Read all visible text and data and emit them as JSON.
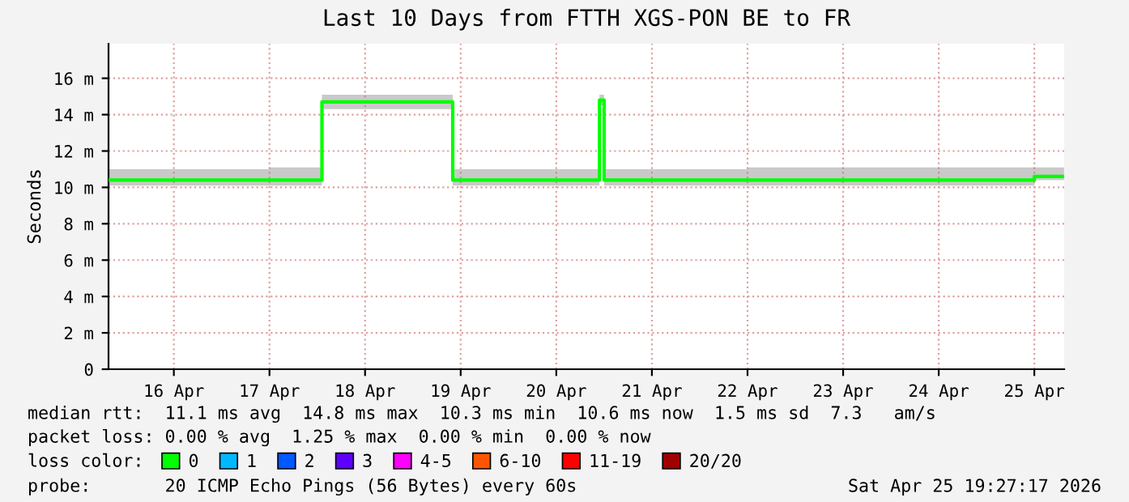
{
  "chart_data": {
    "type": "step",
    "title": "Last 10 Days from FTTH XGS-PON BE to FR",
    "ylabel": "Seconds",
    "x": [
      "2026-04-15T19:36",
      "2026-04-16T06:00",
      "2026-04-17T12:00",
      "2026-04-18T01:10",
      "2026-04-18T12:00",
      "2026-04-19T10:00",
      "2026-04-20T12:00",
      "2026-04-20T22:50",
      "2026-04-21T00:00",
      "2026-04-22T12:00",
      "2026-04-24T00:00",
      "2026-04-25T12:00",
      "2026-04-25T19:27"
    ],
    "series": [
      {
        "name": "0",
        "color": "#00ff00",
        "values": [
          10.4,
          10.4,
          10.4,
          14.7,
          14.7,
          10.4,
          10.4,
          14.8,
          10.4,
          10.4,
          10.4,
          10.6,
          10.6
        ],
        "lower": [
          10.1,
          10.1,
          10.1,
          14.3,
          14.3,
          10.1,
          10.1,
          14.5,
          10.1,
          10.1,
          10.1,
          10.4,
          10.4
        ],
        "upper": [
          11.0,
          11.0,
          11.1,
          15.1,
          15.1,
          11.0,
          11.0,
          15.1,
          11.0,
          11.1,
          11.1,
          11.1,
          11.1
        ]
      },
      {
        "name": "1",
        "color": "#00b8ff",
        "values": [
          null,
          null,
          null,
          null,
          null,
          null,
          null,
          null,
          null,
          null,
          null,
          null,
          null
        ]
      },
      {
        "name": "2",
        "color": "#0059ff",
        "values": [
          null,
          null,
          null,
          null,
          null,
          null,
          null,
          null,
          null,
          null,
          null,
          null,
          null
        ]
      },
      {
        "name": "3",
        "color": "#5e00ff",
        "values": [
          null,
          null,
          null,
          null,
          null,
          null,
          null,
          null,
          null,
          null,
          null,
          null,
          null
        ]
      },
      {
        "name": "4-5",
        "color": "#ff00ff",
        "values": [
          null,
          null,
          null,
          null,
          null,
          null,
          null,
          null,
          null,
          null,
          null,
          null,
          null
        ]
      },
      {
        "name": "6-10",
        "color": "#ff5500",
        "values": [
          null,
          null,
          null,
          null,
          null,
          null,
          null,
          null,
          null,
          null,
          null,
          null,
          null
        ]
      },
      {
        "name": "11-19",
        "color": "#ff0000",
        "values": [
          null,
          null,
          null,
          null,
          null,
          null,
          null,
          null,
          null,
          null,
          null,
          null,
          null
        ]
      },
      {
        "name": "20/20",
        "color": "#a10000",
        "values": [
          null,
          null,
          null,
          null,
          null,
          null,
          null,
          null,
          null,
          null,
          null,
          null,
          null
        ]
      }
    ],
    "legend_title": "loss color:",
    "legend": "bottom",
    "xlim": [
      "2026-04-15T19:36",
      "2026-04-25T19:30"
    ],
    "xticks": [
      {
        "value": "2026-04-16T12:00",
        "label": "16 Apr"
      },
      {
        "value": "2026-04-17T12:00",
        "label": "17 Apr"
      },
      {
        "value": "2026-04-18T12:00",
        "label": "18 Apr"
      },
      {
        "value": "2026-04-19T12:00",
        "label": "19 Apr"
      },
      {
        "value": "2026-04-20T12:00",
        "label": "20 Apr"
      },
      {
        "value": "2026-04-21T12:00",
        "label": "21 Apr"
      },
      {
        "value": "2026-04-22T12:00",
        "label": "22 Apr"
      },
      {
        "value": "2026-04-23T12:00",
        "label": "23 Apr"
      },
      {
        "value": "2026-04-24T12:00",
        "label": "24 Apr"
      },
      {
        "value": "2026-04-25T12:00",
        "label": "25 Apr"
      }
    ],
    "ylim": [
      0,
      17.9
    ],
    "yticks": [
      0,
      {
        "value": 2,
        "label": "2 m"
      },
      {
        "value": 4,
        "label": "4 m"
      },
      {
        "value": 6,
        "label": "6 m"
      },
      {
        "value": 8,
        "label": "8 m"
      },
      {
        "value": 10,
        "label": "10 m"
      },
      {
        "value": 12,
        "label": "12 m"
      },
      {
        "value": 14,
        "label": "14 m"
      },
      {
        "value": 16,
        "label": "16 m"
      }
    ],
    "grid": true,
    "annotations": [
      "median rtt:  11.1 ms avg  14.8 ms max  10.3 ms min  10.6 ms now  1.5 ms sd  7.3   am/s",
      "packet loss: 0.00 % avg  1.25 % max  0.00 % min  0.00 % now",
      "probe:       20 ICMP Echo Pings (56 Bytes) every 60s",
      "Sat Apr 25 19:27:17 2026"
    ]
  }
}
